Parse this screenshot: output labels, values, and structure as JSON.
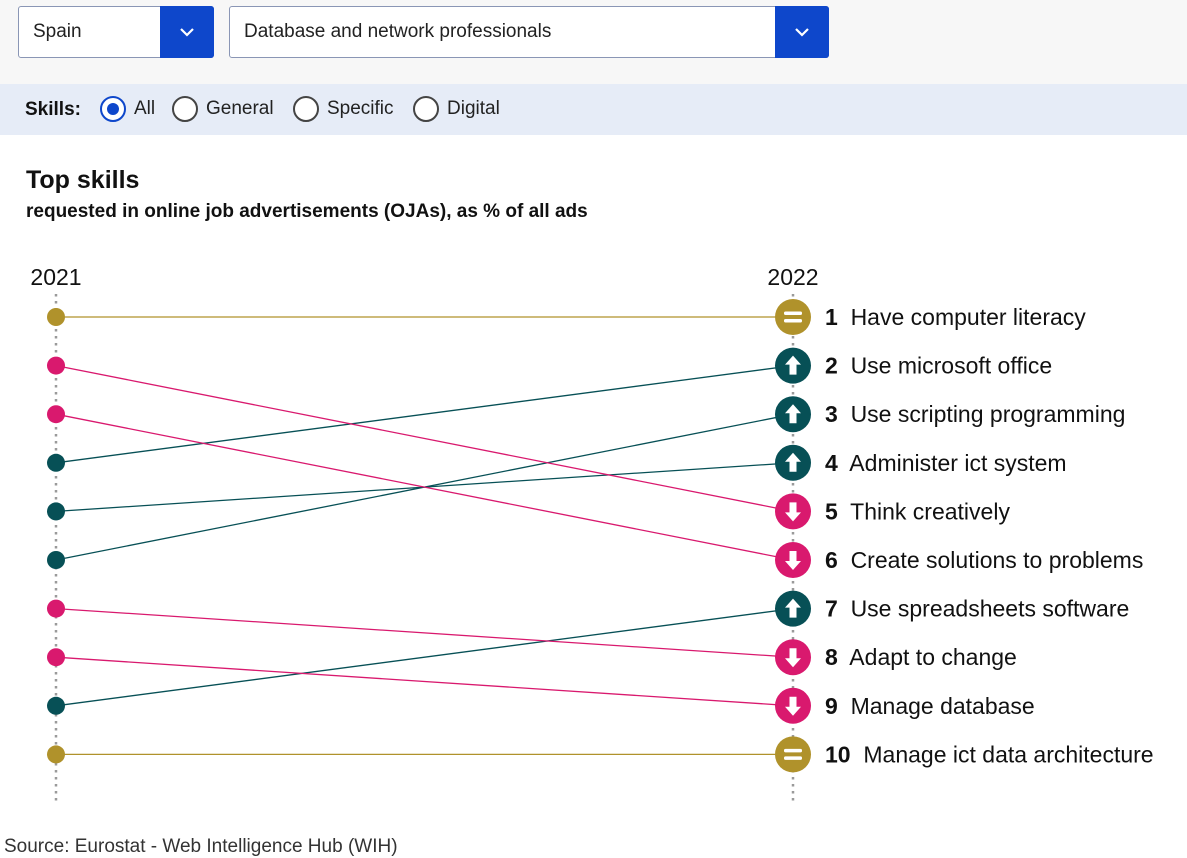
{
  "filters": {
    "country": "Spain",
    "occupation": "Database and network professionals"
  },
  "skills_filter": {
    "label": "Skills:",
    "options": [
      "All",
      "General",
      "Specific",
      "Digital"
    ],
    "selected": "All"
  },
  "title": "Top skills",
  "subtitle": "requested in online job advertisements (OJAs), as % of all ads",
  "colors": {
    "up": "#075056",
    "down": "#d9196e",
    "same": "#b0922b",
    "accent": "#0e47cb"
  },
  "chart_data": {
    "type": "slope",
    "x": [
      "2021",
      "2022"
    ],
    "rows": [
      {
        "rank": 1,
        "label": "Have computer literacy",
        "rank2021": 1,
        "change": "same"
      },
      {
        "rank": 2,
        "label": "Use microsoft office",
        "rank2021": 4,
        "change": "up"
      },
      {
        "rank": 3,
        "label": "Use scripting programming",
        "rank2021": 6,
        "change": "up"
      },
      {
        "rank": 4,
        "label": "Administer ict system",
        "rank2021": 5,
        "change": "up"
      },
      {
        "rank": 5,
        "label": "Think creatively",
        "rank2021": 2,
        "change": "down"
      },
      {
        "rank": 6,
        "label": "Create solutions to problems",
        "rank2021": 3,
        "change": "down"
      },
      {
        "rank": 7,
        "label": "Use spreadsheets software",
        "rank2021": 9,
        "change": "up"
      },
      {
        "rank": 8,
        "label": "Adapt to change",
        "rank2021": 7,
        "change": "down"
      },
      {
        "rank": 9,
        "label": "Manage database",
        "rank2021": 8,
        "change": "down"
      },
      {
        "rank": 10,
        "label": "Manage ict data architecture",
        "rank2021": 10,
        "change": "same"
      }
    ]
  },
  "source": "Source: Eurostat - Web Intelligence Hub (WIH)"
}
